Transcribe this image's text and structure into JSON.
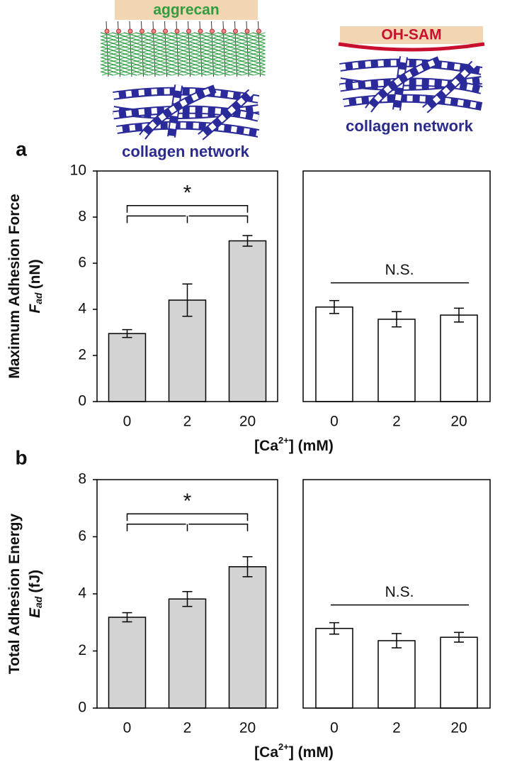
{
  "illustrations": {
    "left": {
      "label": "aggrecan",
      "network": "collagen network"
    },
    "right": {
      "label": "OH-SAM",
      "network": "collagen network"
    }
  },
  "chart_data": [
    {
      "type": "bar",
      "panel_label": "a",
      "y_label": "Maximum Adhesion Force",
      "y_symbol": "F",
      "y_subscript": "ad",
      "y_unit": "(nN)",
      "x_label": "[Ca",
      "x_label_superscript": "2+",
      "x_label_end": "] (mM)",
      "categories": [
        "0",
        "2",
        "20"
      ],
      "ylim": [
        0,
        10
      ],
      "yticks": [
        0,
        2,
        4,
        6,
        8,
        10
      ],
      "panels": [
        {
          "color": "#d3d3d3",
          "values": [
            2.95,
            4.4,
            6.97
          ],
          "errors": [
            0.17,
            0.7,
            0.23
          ],
          "annotation": "*"
        },
        {
          "color": "#ffffff",
          "values": [
            4.1,
            3.57,
            3.75
          ],
          "errors": [
            0.28,
            0.33,
            0.3
          ],
          "annotation": "N.S."
        }
      ]
    },
    {
      "type": "bar",
      "panel_label": "b",
      "y_label": "Total Adhesion Energy",
      "y_symbol": "E",
      "y_subscript": "ad",
      "y_unit": "(fJ)",
      "x_label": "[Ca",
      "x_label_superscript": "2+",
      "x_label_end": "] (mM)",
      "categories": [
        "0",
        "2",
        "20"
      ],
      "ylim": [
        0,
        8
      ],
      "yticks": [
        0,
        2,
        4,
        6,
        8
      ],
      "panels": [
        {
          "color": "#d3d3d3",
          "values": [
            3.18,
            3.82,
            4.95
          ],
          "errors": [
            0.16,
            0.26,
            0.35
          ],
          "annotation": "*"
        },
        {
          "color": "#ffffff",
          "values": [
            2.79,
            2.36,
            2.48
          ],
          "errors": [
            0.2,
            0.25,
            0.17
          ],
          "annotation": "N.S."
        }
      ]
    }
  ]
}
